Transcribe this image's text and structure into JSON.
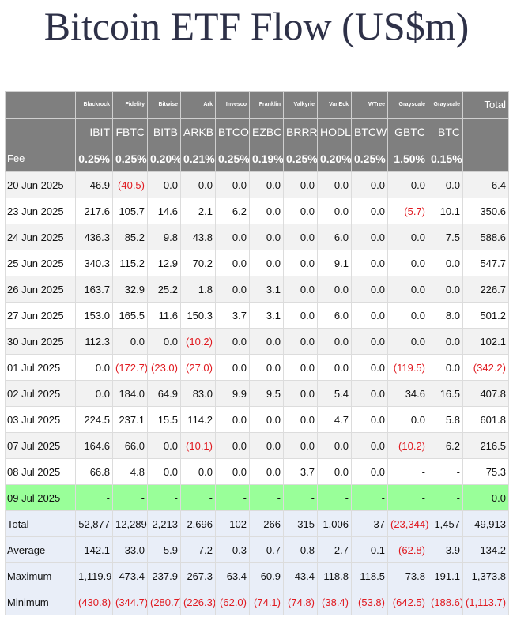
{
  "title": "Bitcoin ETF Flow (US$m)",
  "table": {
    "issuers": [
      "Blackrock",
      "Fidelity",
      "Bitwise",
      "Ark",
      "Invesco",
      "Franklin",
      "Valkyrie",
      "VanEck",
      "WTree",
      "Grayscale",
      "Grayscale",
      "Total"
    ],
    "tickers": [
      "IBIT",
      "FBTC",
      "BITB",
      "ARKB",
      "BTCO",
      "EZBC",
      "BRRR",
      "HODL",
      "BTCW",
      "GBTC",
      "BTC"
    ],
    "fee": {
      "label": "Fee",
      "values": [
        "0.25%",
        "0.25%",
        "0.20%",
        "0.21%",
        "0.25%",
        "0.19%",
        "0.25%",
        "0.20%",
        "0.25%",
        "1.50%",
        "0.15%"
      ]
    },
    "rows": [
      {
        "date": "20 Jun 2025",
        "values": [
          "46.9",
          "(40.5)",
          "0.0",
          "0.0",
          "0.0",
          "0.0",
          "0.0",
          "0.0",
          "0.0",
          "0.0",
          "0.0",
          "6.4"
        ]
      },
      {
        "date": "23 Jun 2025",
        "values": [
          "217.6",
          "105.7",
          "14.6",
          "2.1",
          "6.2",
          "0.0",
          "0.0",
          "0.0",
          "0.0",
          "(5.7)",
          "10.1",
          "350.6"
        ]
      },
      {
        "date": "24 Jun 2025",
        "values": [
          "436.3",
          "85.2",
          "9.8",
          "43.8",
          "0.0",
          "0.0",
          "0.0",
          "6.0",
          "0.0",
          "0.0",
          "7.5",
          "588.6"
        ]
      },
      {
        "date": "25 Jun 2025",
        "values": [
          "340.3",
          "115.2",
          "12.9",
          "70.2",
          "0.0",
          "0.0",
          "0.0",
          "9.1",
          "0.0",
          "0.0",
          "0.0",
          "547.7"
        ]
      },
      {
        "date": "26 Jun 2025",
        "values": [
          "163.7",
          "32.9",
          "25.2",
          "1.8",
          "0.0",
          "3.1",
          "0.0",
          "0.0",
          "0.0",
          "0.0",
          "0.0",
          "226.7"
        ]
      },
      {
        "date": "27 Jun 2025",
        "values": [
          "153.0",
          "165.5",
          "11.6",
          "150.3",
          "3.7",
          "3.1",
          "0.0",
          "6.0",
          "0.0",
          "0.0",
          "8.0",
          "501.2"
        ]
      },
      {
        "date": "30 Jun 2025",
        "values": [
          "112.3",
          "0.0",
          "0.0",
          "(10.2)",
          "0.0",
          "0.0",
          "0.0",
          "0.0",
          "0.0",
          "0.0",
          "0.0",
          "102.1"
        ]
      },
      {
        "date": "01 Jul 2025",
        "values": [
          "0.0",
          "(172.7)",
          "(23.0)",
          "(27.0)",
          "0.0",
          "0.0",
          "0.0",
          "0.0",
          "0.0",
          "(119.5)",
          "0.0",
          "(342.2)"
        ]
      },
      {
        "date": "02 Jul 2025",
        "values": [
          "0.0",
          "184.0",
          "64.9",
          "83.0",
          "9.9",
          "9.5",
          "0.0",
          "5.4",
          "0.0",
          "34.6",
          "16.5",
          "407.8"
        ]
      },
      {
        "date": "03 Jul 2025",
        "values": [
          "224.5",
          "237.1",
          "15.5",
          "114.2",
          "0.0",
          "0.0",
          "0.0",
          "4.7",
          "0.0",
          "0.0",
          "5.8",
          "601.8"
        ]
      },
      {
        "date": "07 Jul 2025",
        "values": [
          "164.6",
          "66.0",
          "0.0",
          "(10.1)",
          "0.0",
          "0.0",
          "0.0",
          "0.0",
          "0.0",
          "(10.2)",
          "6.2",
          "216.5"
        ]
      },
      {
        "date": "08 Jul 2025",
        "values": [
          "66.8",
          "4.8",
          "0.0",
          "0.0",
          "0.0",
          "0.0",
          "3.7",
          "0.0",
          "0.0",
          "-",
          "-",
          "75.3"
        ]
      },
      {
        "date": "09 Jul 2025",
        "values": [
          "-",
          "-",
          "-",
          "-",
          "-",
          "-",
          "-",
          "-",
          "-",
          "-",
          "-",
          "0.0"
        ]
      }
    ],
    "summary": [
      {
        "label": "Total",
        "values": [
          "52,877",
          "12,289",
          "2,213",
          "2,696",
          "102",
          "266",
          "315",
          "1,006",
          "37",
          "(23,344)",
          "1,457",
          "49,913"
        ]
      },
      {
        "label": "Average",
        "values": [
          "142.1",
          "33.0",
          "5.9",
          "7.2",
          "0.3",
          "0.7",
          "0.8",
          "2.7",
          "0.1",
          "(62.8)",
          "3.9",
          "134.2"
        ]
      },
      {
        "label": "Maximum",
        "values": [
          "1,119.9",
          "473.4",
          "237.9",
          "267.3",
          "63.4",
          "60.9",
          "43.4",
          "118.8",
          "118.5",
          "73.8",
          "191.1",
          "1,373.8"
        ]
      },
      {
        "label": "Minimum",
        "values": [
          "(430.8)",
          "(344.7)",
          "(280.7)",
          "(226.3)",
          "(62.0)",
          "(74.1)",
          "(74.8)",
          "(38.4)",
          "(53.8)",
          "(642.5)",
          "(188.6)",
          "(1,113.7)"
        ]
      }
    ]
  }
}
